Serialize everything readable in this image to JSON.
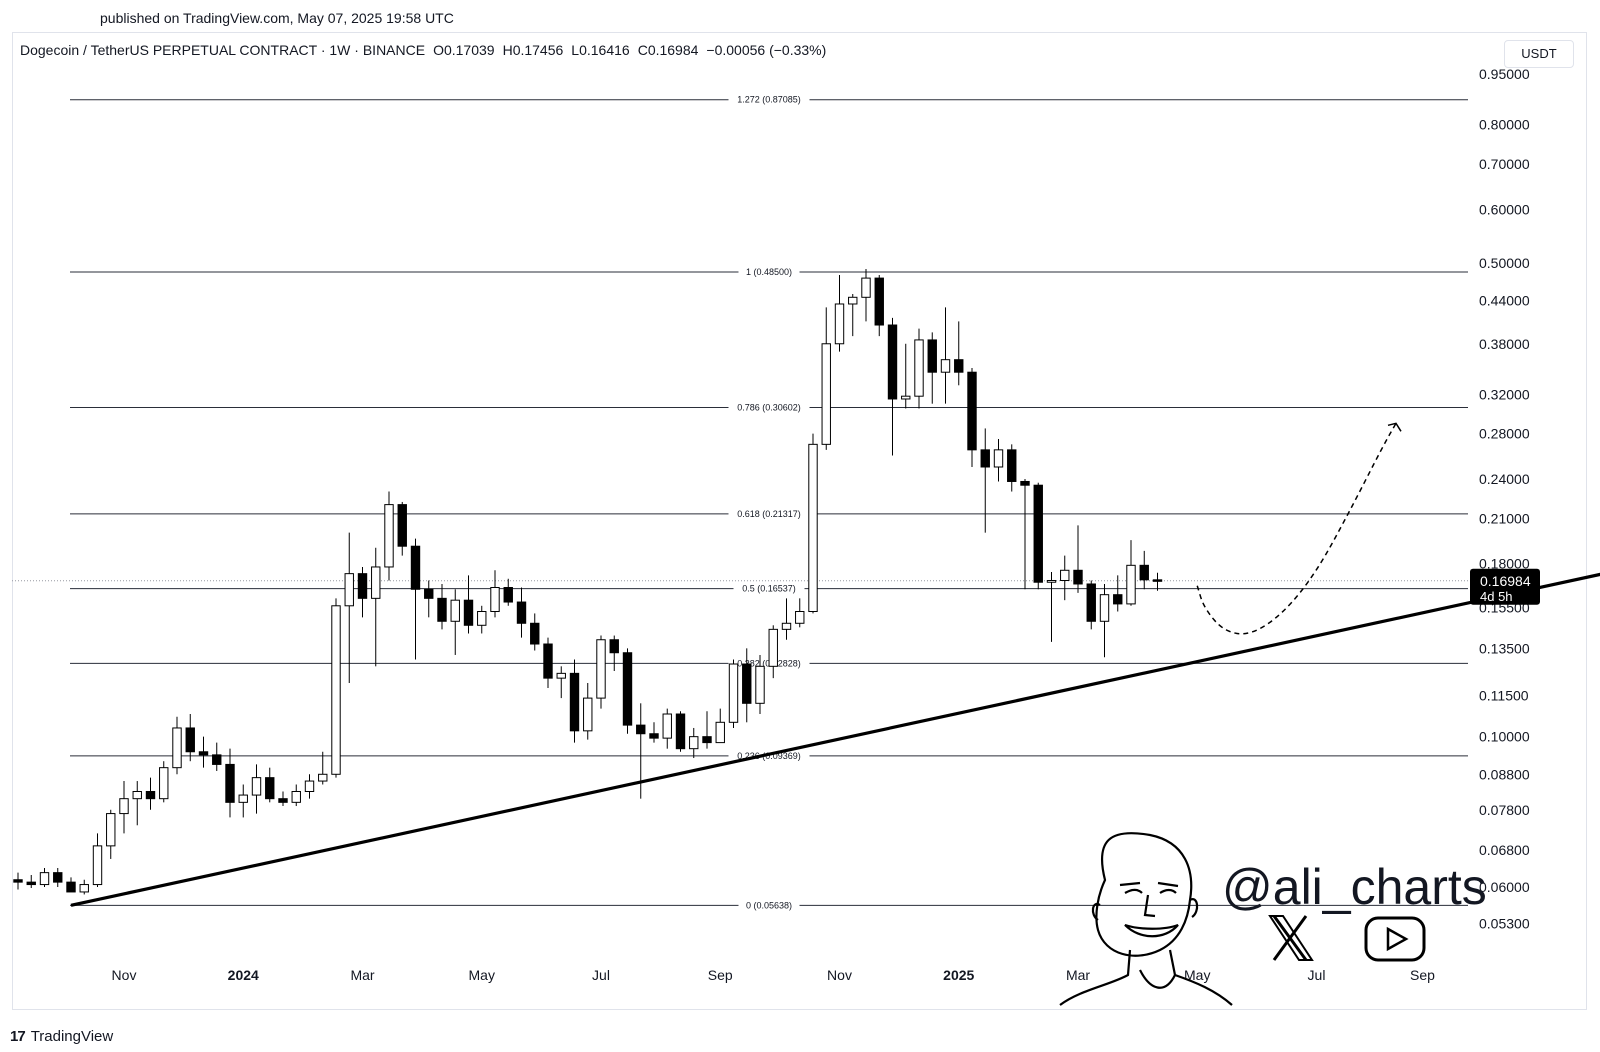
{
  "published": "published on TradingView.com, May 07, 2025 19:58 UTC",
  "legend": {
    "symbol": "Dogecoin / TetherUS PERPETUAL CONTRACT · 1W · BINANCE",
    "open": "O0.17039",
    "high": "H0.17456",
    "low": "L0.16416",
    "close": "C0.16984",
    "change": "−0.00056 (−0.33%)"
  },
  "unit_button": "USDT",
  "footer": {
    "logo": "17",
    "brand": "TradingView"
  },
  "watermark": {
    "handle": "@ali_charts",
    "icons": [
      "x-icon",
      "youtube-icon"
    ]
  },
  "colors": {
    "up": "#ffffff",
    "down": "#000000",
    "wick": "#000000",
    "fib": "#2a2e39",
    "trend": "#000000"
  },
  "chart_data": {
    "type": "candlestick",
    "scale": "log",
    "y_ticks": [
      "0.95000",
      "0.80000",
      "0.70000",
      "0.60000",
      "0.50000",
      "0.44000",
      "0.38000",
      "0.32000",
      "0.28000",
      "0.24000",
      "0.21000",
      "0.18000",
      "0.15500",
      "0.13500",
      "0.11500",
      "0.10000",
      "0.08800",
      "0.07800",
      "0.06800",
      "0.06000",
      "0.05300"
    ],
    "x_ticks": [
      {
        "label": "Nov",
        "week": 0,
        "bold": false
      },
      {
        "label": "2024",
        "week": 9,
        "bold": true
      },
      {
        "label": "Mar",
        "week": 18,
        "bold": false
      },
      {
        "label": "May",
        "week": 27,
        "bold": false
      },
      {
        "label": "Jul",
        "week": 36,
        "bold": false
      },
      {
        "label": "Sep",
        "week": 45,
        "bold": false
      },
      {
        "label": "Nov",
        "week": 54,
        "bold": false
      },
      {
        "label": "2025",
        "week": 63,
        "bold": true
      },
      {
        "label": "Mar",
        "week": 72,
        "bold": false
      },
      {
        "label": "May",
        "week": 81,
        "bold": false
      },
      {
        "label": "Jul",
        "week": 90,
        "bold": false
      },
      {
        "label": "Sep",
        "week": 98,
        "bold": false
      }
    ],
    "current_price": {
      "value": "0.16984",
      "countdown": "4d 5h",
      "price": 0.16984
    },
    "fib_levels": [
      {
        "label": "1.272 (0.87085)",
        "price": 0.87085
      },
      {
        "label": "1 (0.48500)",
        "price": 0.485
      },
      {
        "label": "0.786 (0.30602)",
        "price": 0.30602
      },
      {
        "label": "0.618 (0.21317)",
        "price": 0.21317
      },
      {
        "label": "0.5 (0.16537)",
        "price": 0.16537
      },
      {
        "label": "0.382 (0.12828)",
        "price": 0.12828
      },
      {
        "label": "0.236 (0.09369)",
        "price": 0.09369
      },
      {
        "label": "0 (0.05638)",
        "price": 0.05638
      }
    ],
    "trendline": [
      {
        "week": -4,
        "price": 0.05638
      },
      {
        "week": 114,
        "price": 0.178
      }
    ],
    "projection": [
      {
        "week": 81.0,
        "price": 0.167
      },
      {
        "week": 81.5,
        "price": 0.155
      },
      {
        "week": 83,
        "price": 0.143
      },
      {
        "week": 85,
        "price": 0.141
      },
      {
        "week": 87.5,
        "price": 0.152
      },
      {
        "week": 90,
        "price": 0.175
      },
      {
        "week": 92.5,
        "price": 0.215
      },
      {
        "week": 95,
        "price": 0.268
      },
      {
        "week": 96,
        "price": 0.29
      }
    ],
    "candles": [
      {
        "o": 0.0615,
        "h": 0.063,
        "l": 0.0595,
        "c": 0.061
      },
      {
        "o": 0.061,
        "h": 0.0625,
        "l": 0.0598,
        "c": 0.0605
      },
      {
        "o": 0.0605,
        "h": 0.064,
        "l": 0.06,
        "c": 0.063
      },
      {
        "o": 0.063,
        "h": 0.064,
        "l": 0.06,
        "c": 0.061
      },
      {
        "o": 0.061,
        "h": 0.062,
        "l": 0.059,
        "c": 0.059
      },
      {
        "o": 0.059,
        "h": 0.0615,
        "l": 0.0585,
        "c": 0.0605
      },
      {
        "o": 0.0605,
        "h": 0.072,
        "l": 0.06,
        "c": 0.069
      },
      {
        "o": 0.069,
        "h": 0.078,
        "l": 0.066,
        "c": 0.077
      },
      {
        "o": 0.077,
        "h": 0.086,
        "l": 0.072,
        "c": 0.081
      },
      {
        "o": 0.081,
        "h": 0.086,
        "l": 0.074,
        "c": 0.083
      },
      {
        "o": 0.083,
        "h": 0.087,
        "l": 0.078,
        "c": 0.081
      },
      {
        "o": 0.081,
        "h": 0.092,
        "l": 0.08,
        "c": 0.09
      },
      {
        "o": 0.09,
        "h": 0.107,
        "l": 0.088,
        "c": 0.103
      },
      {
        "o": 0.103,
        "h": 0.108,
        "l": 0.092,
        "c": 0.095
      },
      {
        "o": 0.095,
        "h": 0.1,
        "l": 0.09,
        "c": 0.094
      },
      {
        "o": 0.094,
        "h": 0.098,
        "l": 0.089,
        "c": 0.091
      },
      {
        "o": 0.091,
        "h": 0.096,
        "l": 0.076,
        "c": 0.08
      },
      {
        "o": 0.08,
        "h": 0.085,
        "l": 0.076,
        "c": 0.082
      },
      {
        "o": 0.082,
        "h": 0.091,
        "l": 0.077,
        "c": 0.087
      },
      {
        "o": 0.087,
        "h": 0.09,
        "l": 0.08,
        "c": 0.081
      },
      {
        "o": 0.081,
        "h": 0.083,
        "l": 0.079,
        "c": 0.08
      },
      {
        "o": 0.08,
        "h": 0.085,
        "l": 0.079,
        "c": 0.083
      },
      {
        "o": 0.083,
        "h": 0.088,
        "l": 0.081,
        "c": 0.086
      },
      {
        "o": 0.086,
        "h": 0.095,
        "l": 0.085,
        "c": 0.088
      },
      {
        "o": 0.088,
        "h": 0.16,
        "l": 0.087,
        "c": 0.156
      },
      {
        "o": 0.156,
        "h": 0.2,
        "l": 0.12,
        "c": 0.174
      },
      {
        "o": 0.174,
        "h": 0.178,
        "l": 0.15,
        "c": 0.16
      },
      {
        "o": 0.16,
        "h": 0.19,
        "l": 0.127,
        "c": 0.178
      },
      {
        "o": 0.178,
        "h": 0.23,
        "l": 0.17,
        "c": 0.22
      },
      {
        "o": 0.22,
        "h": 0.222,
        "l": 0.185,
        "c": 0.191
      },
      {
        "o": 0.191,
        "h": 0.196,
        "l": 0.13,
        "c": 0.165
      },
      {
        "o": 0.165,
        "h": 0.17,
        "l": 0.15,
        "c": 0.16
      },
      {
        "o": 0.16,
        "h": 0.168,
        "l": 0.144,
        "c": 0.148
      },
      {
        "o": 0.148,
        "h": 0.165,
        "l": 0.132,
        "c": 0.159
      },
      {
        "o": 0.159,
        "h": 0.173,
        "l": 0.142,
        "c": 0.146
      },
      {
        "o": 0.146,
        "h": 0.156,
        "l": 0.142,
        "c": 0.153
      },
      {
        "o": 0.153,
        "h": 0.176,
        "l": 0.15,
        "c": 0.166
      },
      {
        "o": 0.166,
        "h": 0.171,
        "l": 0.156,
        "c": 0.158
      },
      {
        "o": 0.158,
        "h": 0.166,
        "l": 0.14,
        "c": 0.147
      },
      {
        "o": 0.147,
        "h": 0.152,
        "l": 0.134,
        "c": 0.137
      },
      {
        "o": 0.137,
        "h": 0.14,
        "l": 0.118,
        "c": 0.122
      },
      {
        "o": 0.122,
        "h": 0.127,
        "l": 0.114,
        "c": 0.124
      },
      {
        "o": 0.124,
        "h": 0.13,
        "l": 0.098,
        "c": 0.102
      },
      {
        "o": 0.102,
        "h": 0.12,
        "l": 0.099,
        "c": 0.114
      },
      {
        "o": 0.114,
        "h": 0.141,
        "l": 0.11,
        "c": 0.139
      },
      {
        "o": 0.139,
        "h": 0.141,
        "l": 0.125,
        "c": 0.133
      },
      {
        "o": 0.133,
        "h": 0.135,
        "l": 0.101,
        "c": 0.104
      },
      {
        "o": 0.104,
        "h": 0.112,
        "l": 0.081,
        "c": 0.101
      },
      {
        "o": 0.101,
        "h": 0.105,
        "l": 0.098,
        "c": 0.0995
      },
      {
        "o": 0.0995,
        "h": 0.11,
        "l": 0.096,
        "c": 0.108
      },
      {
        "o": 0.108,
        "h": 0.109,
        "l": 0.095,
        "c": 0.096
      },
      {
        "o": 0.096,
        "h": 0.103,
        "l": 0.093,
        "c": 0.1
      },
      {
        "o": 0.1,
        "h": 0.109,
        "l": 0.096,
        "c": 0.098
      },
      {
        "o": 0.098,
        "h": 0.11,
        "l": 0.098,
        "c": 0.105
      },
      {
        "o": 0.105,
        "h": 0.13,
        "l": 0.103,
        "c": 0.128
      },
      {
        "o": 0.128,
        "h": 0.135,
        "l": 0.105,
        "c": 0.112
      },
      {
        "o": 0.112,
        "h": 0.132,
        "l": 0.108,
        "c": 0.127
      },
      {
        "o": 0.127,
        "h": 0.146,
        "l": 0.122,
        "c": 0.144
      },
      {
        "o": 0.144,
        "h": 0.16,
        "l": 0.139,
        "c": 0.147
      },
      {
        "o": 0.147,
        "h": 0.16,
        "l": 0.145,
        "c": 0.153
      },
      {
        "o": 0.153,
        "h": 0.28,
        "l": 0.152,
        "c": 0.27
      },
      {
        "o": 0.27,
        "h": 0.43,
        "l": 0.265,
        "c": 0.38
      },
      {
        "o": 0.38,
        "h": 0.48,
        "l": 0.37,
        "c": 0.435
      },
      {
        "o": 0.435,
        "h": 0.45,
        "l": 0.39,
        "c": 0.445
      },
      {
        "o": 0.445,
        "h": 0.49,
        "l": 0.41,
        "c": 0.475
      },
      {
        "o": 0.475,
        "h": 0.48,
        "l": 0.39,
        "c": 0.405
      },
      {
        "o": 0.405,
        "h": 0.415,
        "l": 0.26,
        "c": 0.315
      },
      {
        "o": 0.315,
        "h": 0.38,
        "l": 0.305,
        "c": 0.318
      },
      {
        "o": 0.318,
        "h": 0.4,
        "l": 0.305,
        "c": 0.385
      },
      {
        "o": 0.385,
        "h": 0.395,
        "l": 0.31,
        "c": 0.345
      },
      {
        "o": 0.345,
        "h": 0.43,
        "l": 0.31,
        "c": 0.36
      },
      {
        "o": 0.36,
        "h": 0.41,
        "l": 0.33,
        "c": 0.345
      },
      {
        "o": 0.345,
        "h": 0.35,
        "l": 0.25,
        "c": 0.265
      },
      {
        "o": 0.265,
        "h": 0.285,
        "l": 0.2,
        "c": 0.25
      },
      {
        "o": 0.25,
        "h": 0.275,
        "l": 0.238,
        "c": 0.265
      },
      {
        "o": 0.265,
        "h": 0.27,
        "l": 0.23,
        "c": 0.238
      },
      {
        "o": 0.238,
        "h": 0.24,
        "l": 0.165,
        "c": 0.235
      },
      {
        "o": 0.235,
        "h": 0.237,
        "l": 0.165,
        "c": 0.169
      },
      {
        "o": 0.169,
        "h": 0.175,
        "l": 0.138,
        "c": 0.17
      },
      {
        "o": 0.17,
        "h": 0.185,
        "l": 0.159,
        "c": 0.176
      },
      {
        "o": 0.176,
        "h": 0.205,
        "l": 0.163,
        "c": 0.168
      },
      {
        "o": 0.168,
        "h": 0.17,
        "l": 0.144,
        "c": 0.148
      },
      {
        "o": 0.148,
        "h": 0.168,
        "l": 0.131,
        "c": 0.162
      },
      {
        "o": 0.162,
        "h": 0.173,
        "l": 0.153,
        "c": 0.157
      },
      {
        "o": 0.157,
        "h": 0.195,
        "l": 0.156,
        "c": 0.179
      },
      {
        "o": 0.179,
        "h": 0.188,
        "l": 0.165,
        "c": 0.1704
      },
      {
        "o": 0.17039,
        "h": 0.17456,
        "l": 0.16416,
        "c": 0.16984
      }
    ]
  }
}
